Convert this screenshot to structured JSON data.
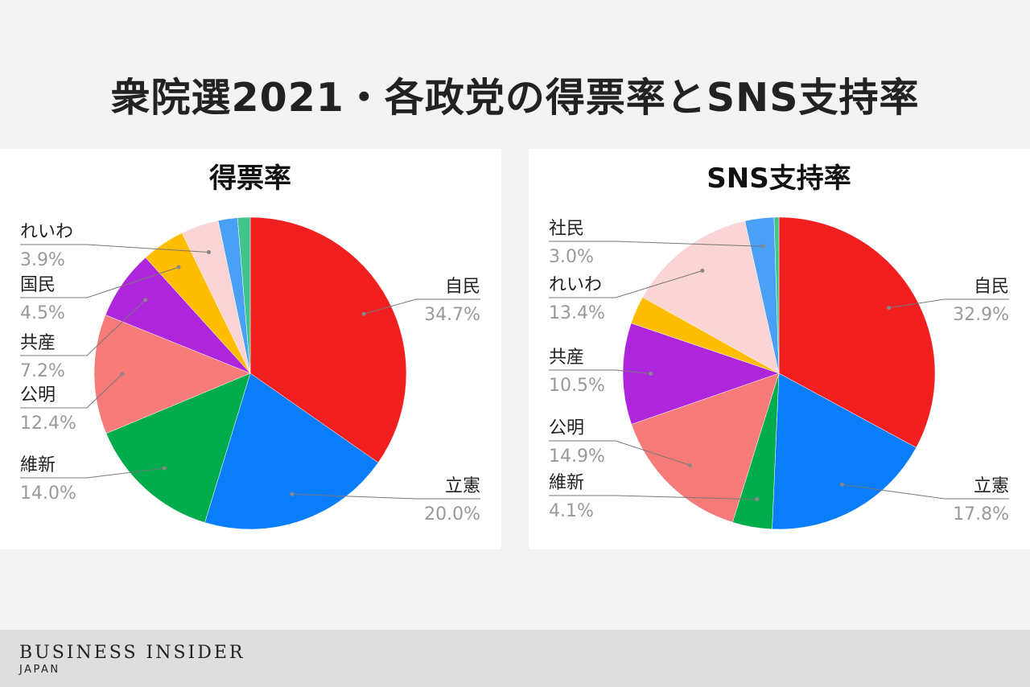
{
  "title": "衆院選2021・各政党の得票率とSNS支持率",
  "brand": {
    "name": "BUSINESS INSIDER",
    "region": "JAPAN"
  },
  "chart_data": [
    {
      "type": "pie",
      "title": "得票率",
      "labels": [
        "自民",
        "立憲",
        "維新",
        "公明",
        "共産",
        "国民",
        "れいわ",
        "",
        ""
      ],
      "values": [
        34.7,
        20.0,
        14.0,
        12.4,
        7.2,
        4.5,
        3.9,
        2.0,
        1.3
      ],
      "value_labels": [
        "34.7%",
        "20.0%",
        "14.0%",
        "12.4%",
        "7.2%",
        "4.5%",
        "3.9%",
        "",
        ""
      ],
      "colors": [
        "#f21f21",
        "#0a7dfa",
        "#00ac4b",
        "#f77b79",
        "#ae26db",
        "#ffbd00",
        "#fbd4d5",
        "#4a9ff6",
        "#41c58a"
      ]
    },
    {
      "type": "pie",
      "title": "SNS支持率",
      "labels": [
        "自民",
        "立憲",
        "維新",
        "公明",
        "共産",
        "",
        "れいわ",
        "社民",
        ""
      ],
      "values": [
        32.9,
        17.8,
        4.1,
        14.9,
        10.5,
        2.9,
        13.4,
        3.0,
        0.5
      ],
      "value_labels": [
        "32.9%",
        "17.8%",
        "4.1%",
        "14.9%",
        "10.5%",
        "",
        "13.4%",
        "3.0%",
        ""
      ],
      "colors": [
        "#f21f21",
        "#0a7dfa",
        "#00ac4b",
        "#f77b79",
        "#ae26db",
        "#ffbd00",
        "#fbd4d5",
        "#4a9ff6",
        "#41c58a"
      ]
    }
  ]
}
